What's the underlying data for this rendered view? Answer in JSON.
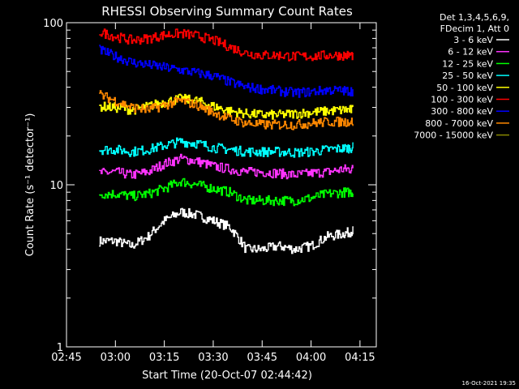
{
  "chart_data": {
    "type": "line",
    "title": "RHESSI Observing Summary Count Rates",
    "xlabel": "Start Time (20-Oct-07 02:44:42)",
    "ylabel": "Count Rate (s⁻¹ detector⁻¹)",
    "y_scale": "log",
    "ylim": [
      1,
      100
    ],
    "xlim": [
      "02:45",
      "04:20"
    ],
    "x_tick_labels": [
      "02:45",
      "03:00",
      "03:15",
      "03:30",
      "03:45",
      "04:00",
      "04:15"
    ],
    "y_tick_labels": [
      "1",
      "10",
      "100"
    ],
    "legend": {
      "header_lines": [
        "Det 1,3,4,5,6,9,",
        "FDecim 1, Att 0"
      ],
      "position": "right"
    },
    "timestamp": "16-Oct-2021 19:35",
    "x": [
      "02:55",
      "03:00",
      "03:05",
      "03:10",
      "03:15",
      "03:20",
      "03:25",
      "03:30",
      "03:35",
      "03:40",
      "03:45",
      "03:50",
      "03:55",
      "04:00",
      "04:05",
      "04:10",
      "04:13"
    ],
    "series": [
      {
        "name": "3 - 6 keV",
        "color": "#ffffff",
        "values": [
          4.5,
          4.5,
          4.2,
          4.8,
          6.0,
          6.8,
          6.5,
          6.0,
          5.5,
          4.0,
          4.0,
          4.2,
          4.0,
          4.2,
          4.8,
          5.0,
          5.2
        ]
      },
      {
        "name": "6 - 12 keV",
        "color": "#ff33ff",
        "values": [
          11.8,
          12.0,
          11.5,
          12.0,
          13.5,
          14.5,
          14.0,
          13.0,
          12.5,
          12.0,
          12.0,
          11.8,
          11.5,
          11.8,
          12.0,
          12.5,
          12.5
        ]
      },
      {
        "name": "12 - 25 keV",
        "color": "#00ff00",
        "values": [
          8.8,
          8.8,
          8.5,
          8.8,
          9.5,
          10.5,
          10.0,
          9.5,
          9.0,
          8.0,
          8.0,
          8.0,
          8.0,
          8.3,
          8.8,
          9.0,
          9.0
        ]
      },
      {
        "name": "25 - 50 keV",
        "color": "#00ffff",
        "values": [
          16.5,
          16.5,
          16.0,
          16.5,
          17.5,
          18.5,
          18.0,
          17.0,
          16.5,
          16.0,
          16.0,
          16.0,
          15.8,
          16.0,
          16.5,
          16.8,
          17.0
        ]
      },
      {
        "name": "50 - 100 keV",
        "color": "#ffff00",
        "values": [
          30.5,
          30.0,
          29.0,
          30.5,
          32.5,
          34.0,
          33.0,
          30.5,
          28.5,
          27.5,
          27.0,
          27.0,
          27.5,
          28.0,
          28.5,
          29.0,
          29.0
        ]
      },
      {
        "name": "100 - 300 keV",
        "color": "#ff0000",
        "values": [
          88,
          82,
          78,
          80,
          84,
          86,
          83,
          78,
          71,
          65,
          63,
          63,
          62,
          62,
          63,
          63,
          63
        ]
      },
      {
        "name": "300 - 800 keV",
        "color": "#0000ff",
        "values": [
          68,
          62,
          57,
          55,
          53,
          51,
          49,
          47,
          43,
          40,
          39,
          38,
          37,
          37.5,
          38.5,
          38,
          38
        ]
      },
      {
        "name": "800 - 7000 keV",
        "color": "#ff8800",
        "values": [
          36,
          33,
          30,
          29,
          31,
          33,
          31,
          28,
          25.5,
          24,
          23.5,
          23.5,
          23.5,
          24,
          24.5,
          24.5,
          24.5
        ]
      },
      {
        "name": "7000 - 15000 keV",
        "color": "#888800",
        "values": [
          null,
          null,
          null,
          null,
          null,
          null,
          null,
          null,
          null,
          null,
          null,
          null,
          null,
          null,
          null,
          null,
          null
        ]
      }
    ]
  }
}
